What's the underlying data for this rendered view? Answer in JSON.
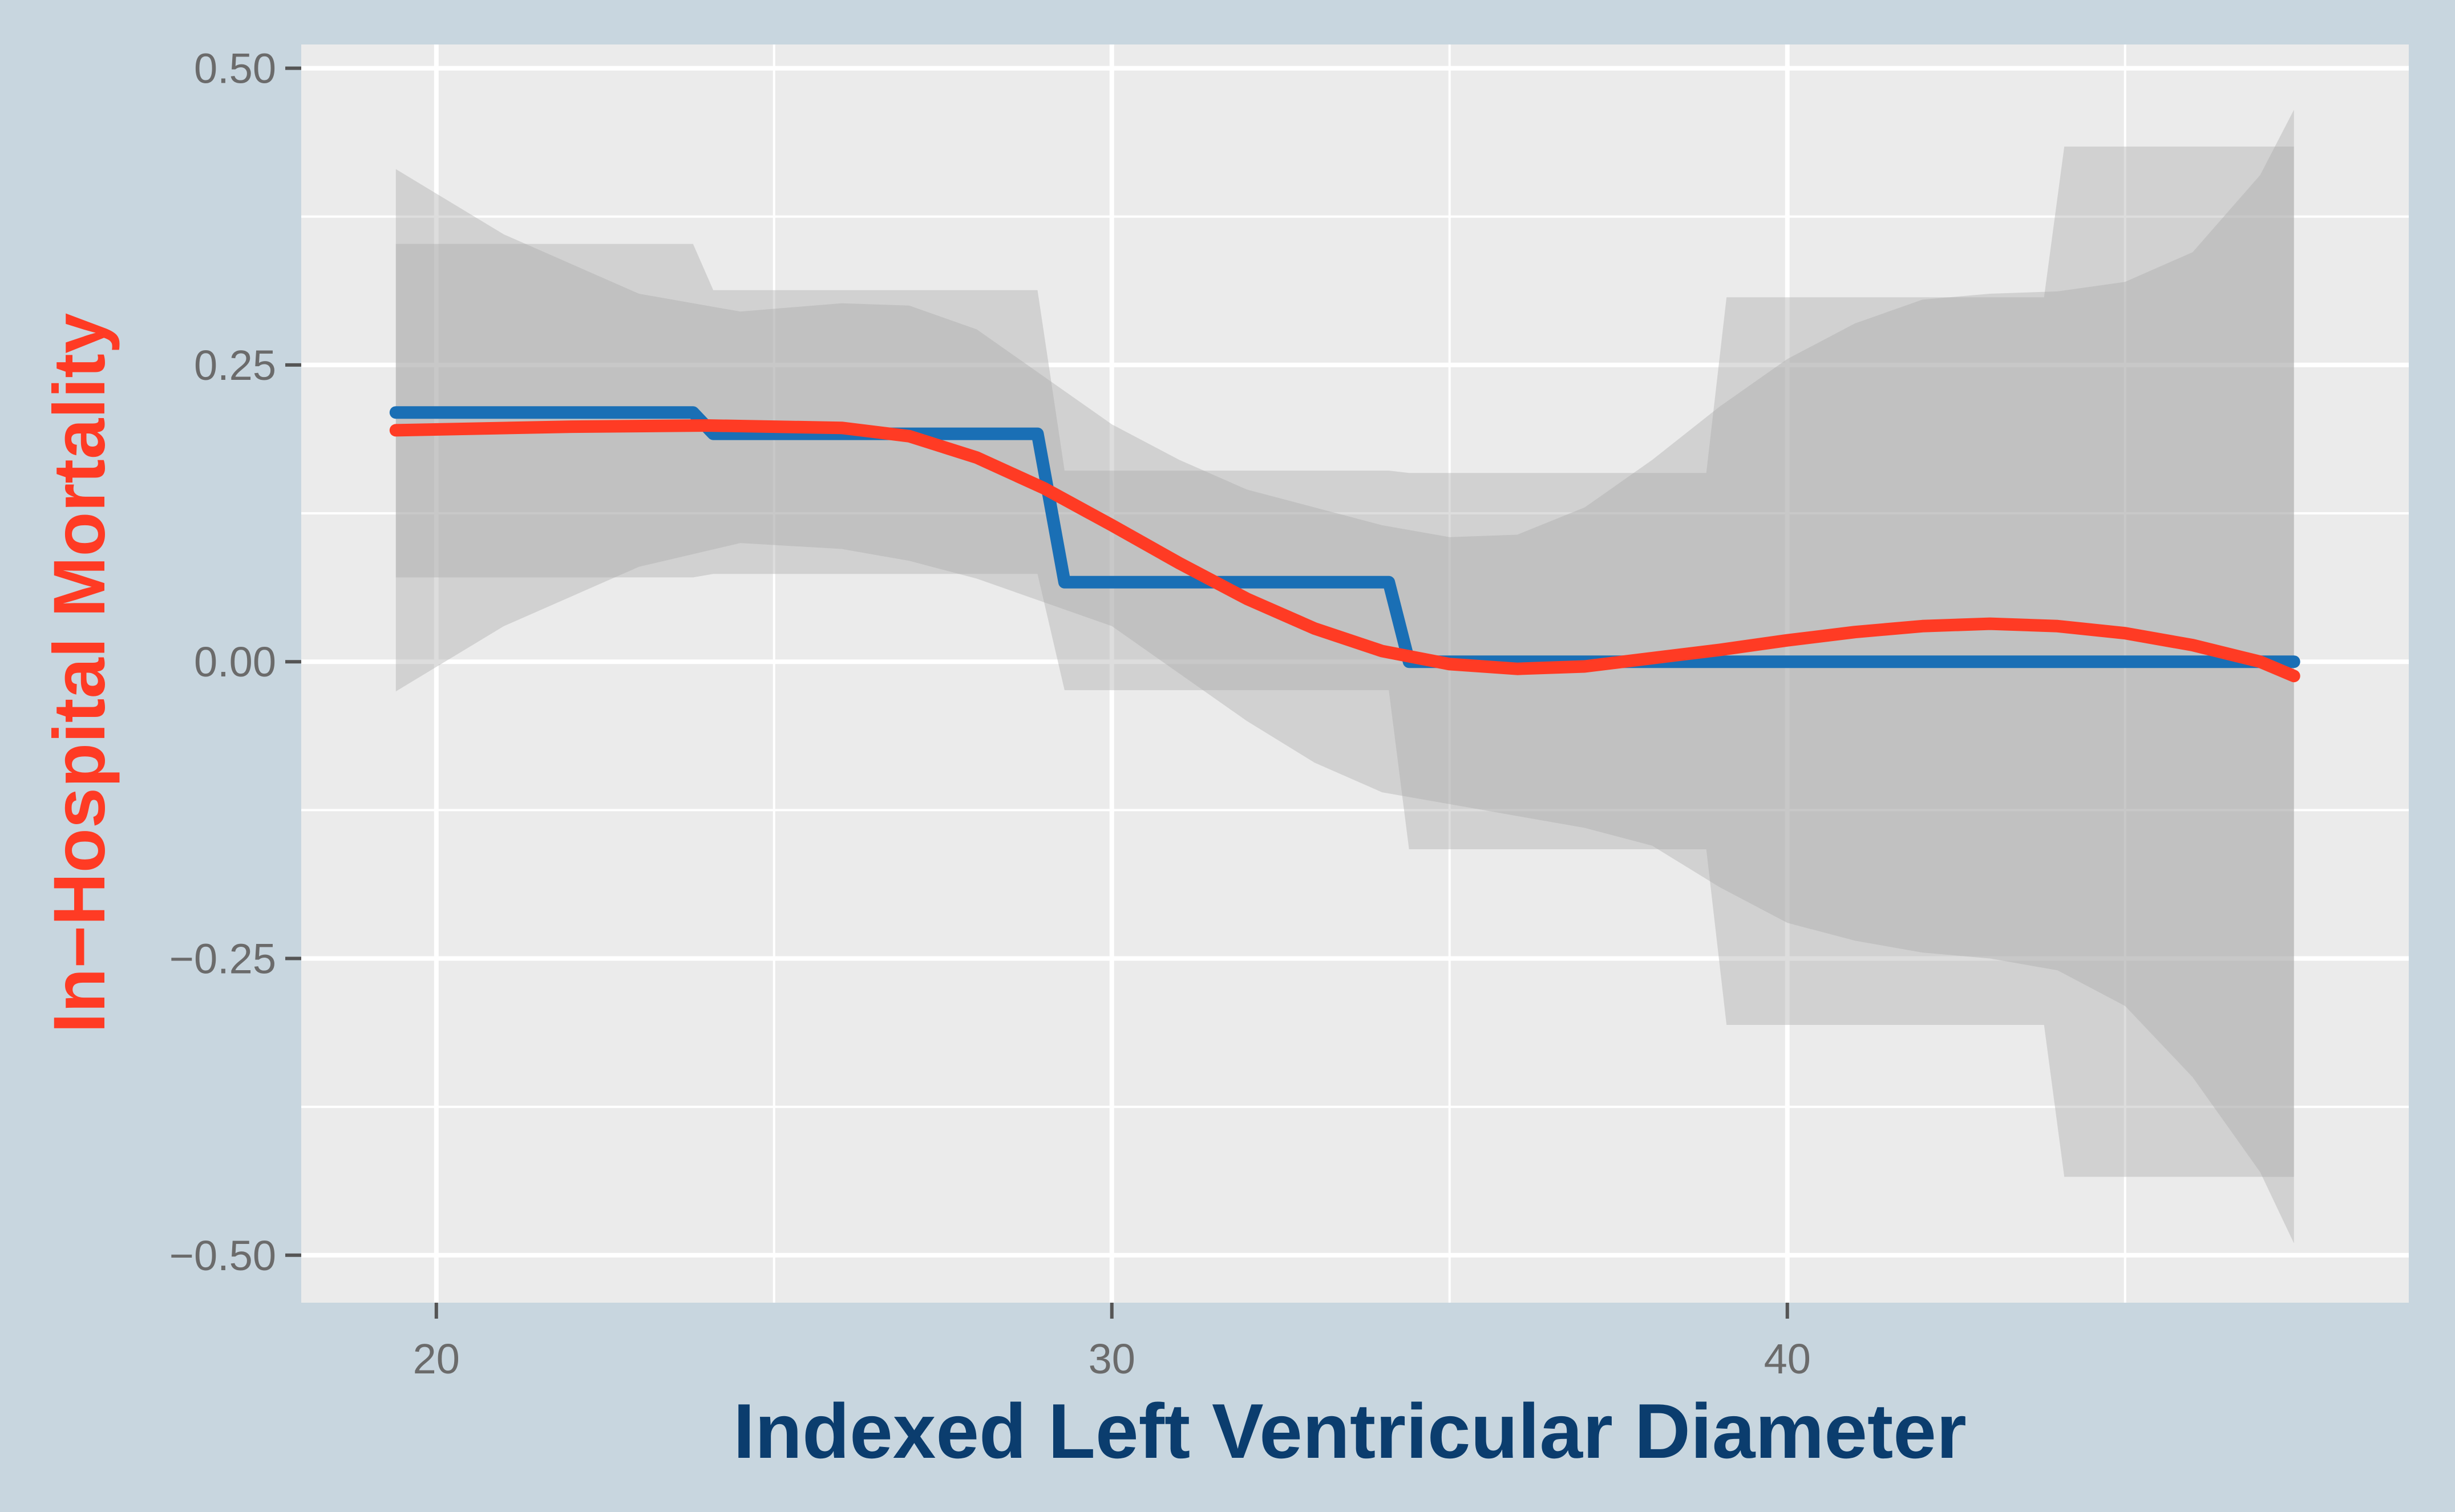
{
  "chart_data": {
    "type": "line",
    "title": "",
    "xlabel": "Indexed Left Ventricular Diameter",
    "ylabel": "In−Hospital Mortality",
    "xlim": [
      18,
      49.2
    ],
    "ylim": [
      -0.54,
      0.52
    ],
    "x_ticks": [
      {
        "value": 20,
        "label": "20"
      },
      {
        "value": 30,
        "label": "30"
      },
      {
        "value": 40,
        "label": "40"
      }
    ],
    "y_ticks": [
      {
        "value": 0.5,
        "label": "0.50"
      },
      {
        "value": 0.25,
        "label": "0.25"
      },
      {
        "value": 0.0,
        "label": "0.00"
      },
      {
        "value": -0.25,
        "label": "−0.25"
      },
      {
        "value": -0.5,
        "label": "−0.50"
      }
    ],
    "x_minor_grid": [
      25,
      35,
      45
    ],
    "y_minor_grid": [
      0.375,
      0.125,
      -0.125,
      -0.375
    ],
    "grid": true,
    "legend": "none",
    "colors": {
      "frame": "#c8d6df",
      "panel": "#ebebeb",
      "grid": "#ffffff",
      "ribbon": "#a9a9a9",
      "step_line": "#1a6fb5",
      "smooth_line": "#ff3b24"
    },
    "series": [
      {
        "kind": "step",
        "color": "#1a6fb5",
        "points": [
          [
            19.4,
            0.21
          ],
          [
            23.8,
            0.21
          ],
          [
            24.1,
            0.192
          ],
          [
            28.9,
            0.192
          ],
          [
            29.3,
            0.067
          ],
          [
            34.1,
            0.067
          ],
          [
            34.4,
            0.0
          ],
          [
            47.5,
            0.0
          ]
        ],
        "ci_upper": [
          [
            19.4,
            0.352
          ],
          [
            23.8,
            0.352
          ],
          [
            24.1,
            0.313
          ],
          [
            28.9,
            0.313
          ],
          [
            29.3,
            0.161
          ],
          [
            34.1,
            0.161
          ],
          [
            34.4,
            0.159
          ],
          [
            38.8,
            0.159
          ],
          [
            39.1,
            0.307
          ],
          [
            43.8,
            0.307
          ],
          [
            44.1,
            0.434
          ],
          [
            47.5,
            0.434
          ]
        ],
        "ci_lower": [
          [
            19.4,
            0.071
          ],
          [
            23.8,
            0.071
          ],
          [
            24.1,
            0.074
          ],
          [
            28.9,
            0.074
          ],
          [
            29.3,
            -0.024
          ],
          [
            34.1,
            -0.024
          ],
          [
            34.4,
            -0.158
          ],
          [
            38.8,
            -0.158
          ],
          [
            39.1,
            -0.306
          ],
          [
            43.8,
            -0.306
          ],
          [
            44.1,
            -0.434
          ],
          [
            47.5,
            -0.434
          ]
        ]
      },
      {
        "kind": "smooth",
        "color": "#ff3b24",
        "points": [
          [
            19.4,
            0.195
          ],
          [
            22,
            0.198
          ],
          [
            24,
            0.199
          ],
          [
            26,
            0.197
          ],
          [
            27,
            0.19
          ],
          [
            28,
            0.172
          ],
          [
            29,
            0.146
          ],
          [
            30,
            0.115
          ],
          [
            31,
            0.083
          ],
          [
            32,
            0.053
          ],
          [
            33,
            0.028
          ],
          [
            34,
            0.009
          ],
          [
            35,
            -0.002
          ],
          [
            36,
            -0.006
          ],
          [
            37,
            -0.004
          ],
          [
            38,
            0.003
          ],
          [
            39,
            0.01
          ],
          [
            40,
            0.018
          ],
          [
            41,
            0.025
          ],
          [
            42,
            0.03
          ],
          [
            43,
            0.032
          ],
          [
            44,
            0.03
          ],
          [
            45,
            0.024
          ],
          [
            46,
            0.014
          ],
          [
            47,
            0.0
          ],
          [
            47.5,
            -0.012
          ]
        ],
        "ci_upper": [
          [
            19.4,
            0.415
          ],
          [
            21,
            0.36
          ],
          [
            23,
            0.31
          ],
          [
            24.5,
            0.295
          ],
          [
            26,
            0.302
          ],
          [
            27,
            0.3
          ],
          [
            28,
            0.28
          ],
          [
            29,
            0.24
          ],
          [
            30,
            0.2
          ],
          [
            31,
            0.17
          ],
          [
            32,
            0.145
          ],
          [
            33,
            0.13
          ],
          [
            34,
            0.115
          ],
          [
            35,
            0.105
          ],
          [
            36,
            0.107
          ],
          [
            37,
            0.13
          ],
          [
            38,
            0.17
          ],
          [
            39,
            0.215
          ],
          [
            40,
            0.255
          ],
          [
            41,
            0.285
          ],
          [
            42,
            0.305
          ],
          [
            43,
            0.31
          ],
          [
            44,
            0.312
          ],
          [
            45,
            0.32
          ],
          [
            46,
            0.345
          ],
          [
            47,
            0.41
          ],
          [
            47.5,
            0.465
          ]
        ],
        "ci_lower": [
          [
            19.4,
            -0.025
          ],
          [
            21,
            0.03
          ],
          [
            23,
            0.08
          ],
          [
            24.5,
            0.1
          ],
          [
            26,
            0.095
          ],
          [
            27,
            0.085
          ],
          [
            28,
            0.07
          ],
          [
            29,
            0.05
          ],
          [
            30,
            0.03
          ],
          [
            31,
            -0.01
          ],
          [
            32,
            -0.05
          ],
          [
            33,
            -0.085
          ],
          [
            34,
            -0.11
          ],
          [
            35,
            -0.12
          ],
          [
            36,
            -0.13
          ],
          [
            37,
            -0.14
          ],
          [
            38,
            -0.155
          ],
          [
            39,
            -0.19
          ],
          [
            40,
            -0.22
          ],
          [
            41,
            -0.235
          ],
          [
            42,
            -0.245
          ],
          [
            43,
            -0.25
          ],
          [
            44,
            -0.26
          ],
          [
            45,
            -0.29
          ],
          [
            46,
            -0.35
          ],
          [
            47,
            -0.43
          ],
          [
            47.5,
            -0.49
          ]
        ]
      }
    ]
  }
}
